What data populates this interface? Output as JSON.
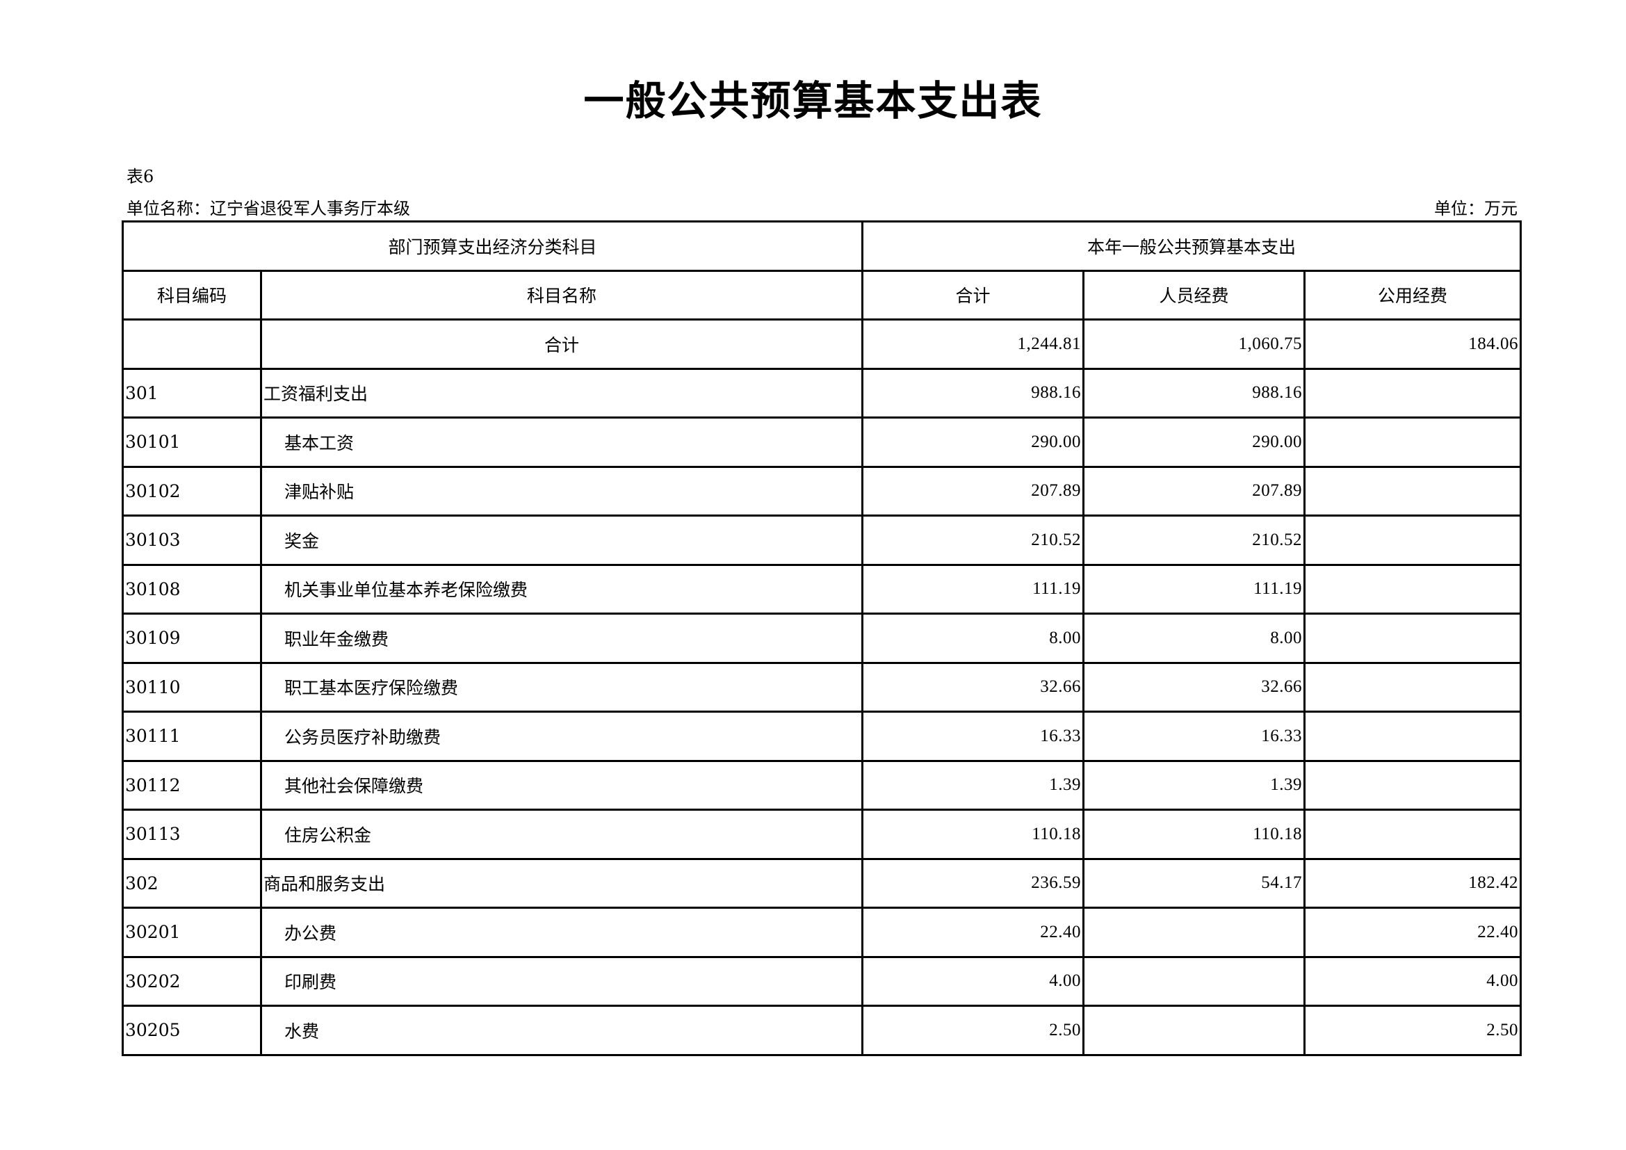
{
  "title": "一般公共预算基本支出表",
  "table_no": "表6",
  "unit_name": "单位名称：辽宁省退役军人事务厅本级",
  "unit": "单位：万元",
  "headers": {
    "group_left": "部门预算支出经济分类科目",
    "group_right": "本年一般公共预算基本支出",
    "code": "科目编码",
    "name": "科目名称",
    "total": "合计",
    "personnel": "人员经费",
    "public": "公用经费"
  },
  "rows": [
    {
      "code": "",
      "name": "合计",
      "total": "1,244.81",
      "personnel": "1,060.75",
      "public": "184.06",
      "level": 0
    },
    {
      "code": "301",
      "name": "工资福利支出",
      "total": "988.16",
      "personnel": "988.16",
      "public": "",
      "level": 1
    },
    {
      "code": "30101",
      "name": "基本工资",
      "total": "290.00",
      "personnel": "290.00",
      "public": "",
      "level": 2
    },
    {
      "code": "30102",
      "name": "津贴补贴",
      "total": "207.89",
      "personnel": "207.89",
      "public": "",
      "level": 2
    },
    {
      "code": "30103",
      "name": "奖金",
      "total": "210.52",
      "personnel": "210.52",
      "public": "",
      "level": 2
    },
    {
      "code": "30108",
      "name": "机关事业单位基本养老保险缴费",
      "total": "111.19",
      "personnel": "111.19",
      "public": "",
      "level": 2
    },
    {
      "code": "30109",
      "name": "职业年金缴费",
      "total": "8.00",
      "personnel": "8.00",
      "public": "",
      "level": 2
    },
    {
      "code": "30110",
      "name": "职工基本医疗保险缴费",
      "total": "32.66",
      "personnel": "32.66",
      "public": "",
      "level": 2
    },
    {
      "code": "30111",
      "name": "公务员医疗补助缴费",
      "total": "16.33",
      "personnel": "16.33",
      "public": "",
      "level": 2
    },
    {
      "code": "30112",
      "name": "其他社会保障缴费",
      "total": "1.39",
      "personnel": "1.39",
      "public": "",
      "level": 2
    },
    {
      "code": "30113",
      "name": "住房公积金",
      "total": "110.18",
      "personnel": "110.18",
      "public": "",
      "level": 2
    },
    {
      "code": "302",
      "name": "商品和服务支出",
      "total": "236.59",
      "personnel": "54.17",
      "public": "182.42",
      "level": 1
    },
    {
      "code": "30201",
      "name": "办公费",
      "total": "22.40",
      "personnel": "",
      "public": "22.40",
      "level": 2
    },
    {
      "code": "30202",
      "name": "印刷费",
      "total": "4.00",
      "personnel": "",
      "public": "4.00",
      "level": 2
    },
    {
      "code": "30205",
      "name": "水费",
      "total": "2.50",
      "personnel": "",
      "public": "2.50",
      "level": 2
    }
  ]
}
